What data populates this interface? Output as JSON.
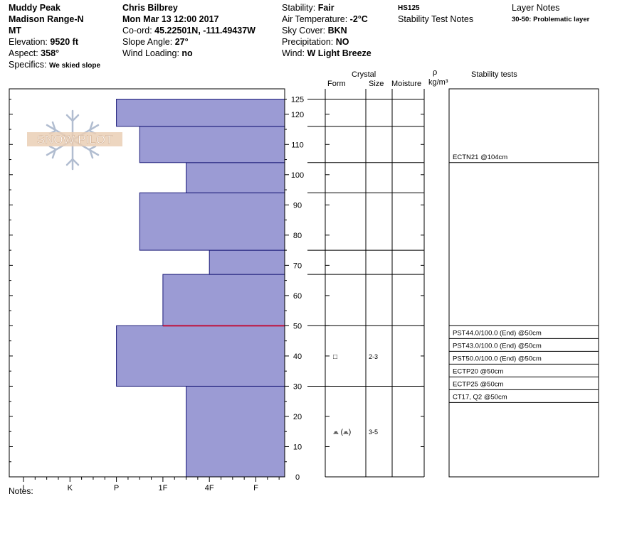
{
  "header": {
    "location": "Muddy Peak",
    "range": "Madison Range-N",
    "state": "MT",
    "elevation_label": "Elevation:",
    "elevation_value": "9520 ft",
    "aspect_label": "Aspect:",
    "aspect_value": "358°",
    "specifics_label": "Specifics:",
    "specifics_value": "We skied slope",
    "observer": "Chris Bilbrey",
    "datetime": "Mon Mar 13 12:00 2017",
    "coord_label": "Co-ord:",
    "coord_value": "45.22501N, -111.49437W",
    "slope_label": "Slope Angle:",
    "slope_value": "27°",
    "wind_loading_label": "Wind Loading:",
    "wind_loading_value": "no",
    "stability_label": "Stability:",
    "stability_value": "Fair",
    "air_temp_label": "Air Temperature:",
    "air_temp_value": "-2°C",
    "sky_label": "Sky Cover:",
    "sky_value": "BKN",
    "precip_label": "Precipitation:",
    "precip_value": "NO",
    "wind_label": "Wind:",
    "wind_value": "W Light Breeze",
    "hs": "HS125",
    "stability_notes_label": "Stability Test Notes",
    "layer_notes_label": "Layer Notes",
    "layer_note": "30-50: Problematic layer"
  },
  "logo_text": "SNOW PILOT",
  "columns": {
    "crystal": "Crystal",
    "form": "Form",
    "size": "Size",
    "moisture": "Moisture",
    "rho": "ρ",
    "density_unit": "kg/m³",
    "stability_tests": "Stability tests"
  },
  "notes_label": "Notes:",
  "colors": {
    "fill": "#9b9bd4",
    "stroke": "#1a1a78",
    "problem_line": "#c0103a"
  },
  "chart_data": {
    "type": "bar",
    "orientation": "horizontal-profile",
    "hardness_categories": [
      "I",
      "K",
      "P",
      "1F",
      "4F",
      "F"
    ],
    "height_ticks": [
      0,
      10,
      20,
      30,
      40,
      50,
      60,
      70,
      80,
      90,
      100,
      110,
      120,
      125
    ],
    "ylim": [
      0,
      125
    ],
    "layers": [
      {
        "bottom": 0,
        "top": 30,
        "hardness": 3.5
      },
      {
        "bottom": 30,
        "top": 50,
        "hardness": 2.0
      },
      {
        "bottom": 50,
        "top": 67,
        "hardness": 3.0
      },
      {
        "bottom": 67,
        "top": 75,
        "hardness": 4.0
      },
      {
        "bottom": 75,
        "top": 94,
        "hardness": 2.5
      },
      {
        "bottom": 94,
        "top": 104,
        "hardness": 3.5
      },
      {
        "bottom": 104,
        "top": 116,
        "hardness": 2.5
      },
      {
        "bottom": 116,
        "top": 125,
        "hardness": 2.0
      }
    ],
    "problem_layer_height": 50,
    "crystals": [
      {
        "height": 40,
        "form": "□",
        "size": "2-3"
      },
      {
        "height": 15,
        "form": "⩕ (⩕)",
        "size": "3-5"
      }
    ],
    "stability_tests": [
      {
        "text": "ECTN21 @104cm",
        "height": 104
      },
      {
        "text": "PST44.0/100.0 (End) @50cm",
        "height": 50
      },
      {
        "text": "PST43.0/100.0 (End) @50cm",
        "height": 50
      },
      {
        "text": "PST50.0/100.0 (End) @50cm",
        "height": 50
      },
      {
        "text": "ECTP20 @50cm",
        "height": 50
      },
      {
        "text": "ECTP25 @50cm",
        "height": 50
      },
      {
        "text": "CT17, Q2 @50cm",
        "height": 50
      }
    ]
  }
}
